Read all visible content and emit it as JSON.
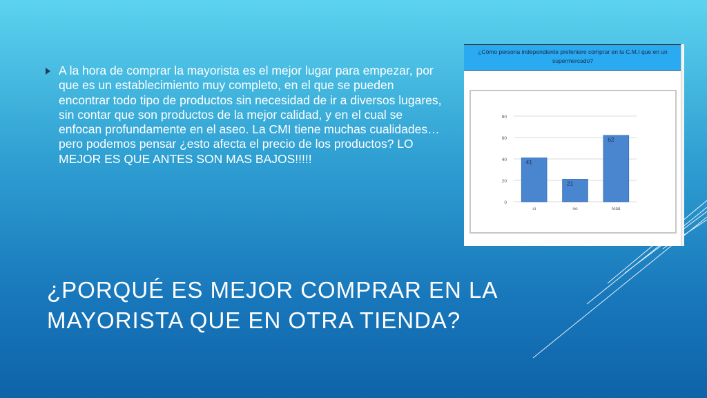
{
  "slide": {
    "bullet_text": "A la hora de comprar la mayorista es el mejor lugar para empezar, por que es un establecimiento muy completo, en el que se pueden encontrar todo tipo de productos sin necesidad de ir a diversos lugares, sin contar que son productos de la mejor calidad, y en el cual se enfocan profundamente en el aseo. La CMI tiene muchas cualidades… pero podemos pensar  ¿esto afecta el precio de los productos? LO MEJOR ES QUE ANTES SON MAS BAJOS!!!!!",
    "title": "¿PORQUÉ ES MEJOR COMPRAR EN LA MAYORISTA QUE EN OTRA TIENDA?"
  },
  "chart_header": "¿Cómo persona independiente prefeniere comprar en la C.M.I que en un supermercado?",
  "colors": {
    "bar": "#4a86d0",
    "bar_edge": "#3a6fb0",
    "header": "#29aaf1",
    "grid": "#d9d9d9"
  },
  "chart_data": {
    "type": "bar",
    "title": "¿Cómo persona independiente prefeniere comprar en la C.M.I que en un supermercado?",
    "categories": [
      "si",
      "no",
      "total"
    ],
    "values": [
      41,
      21,
      62
    ],
    "data_labels": [
      "41",
      "21",
      "62"
    ],
    "ylim": [
      0,
      80
    ],
    "yticks": [
      0,
      20,
      40,
      60,
      80
    ],
    "xlabel": "",
    "ylabel": "",
    "grid": true,
    "legend": "none"
  }
}
